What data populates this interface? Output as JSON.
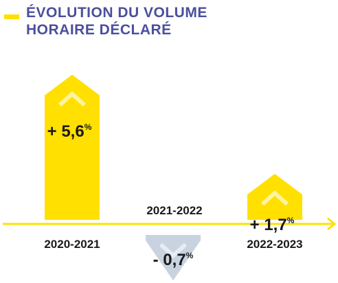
{
  "title": {
    "line1": "ÉVOLUTION DU VOLUME",
    "line2": "HORAIRE DÉCLARÉ"
  },
  "colors": {
    "positive": "#FFE000",
    "negative": "#C9D3E0",
    "axis": "#FFE000",
    "title": "#4B4F9C",
    "chevron": "#FFF4A0"
  },
  "chart_data": {
    "type": "bar",
    "categories": [
      "2020-2021",
      "2021-2022",
      "2022-2023"
    ],
    "values": [
      5.6,
      -0.7,
      1.7
    ],
    "value_labels": [
      {
        "text": "+ 5,6",
        "unit": "%"
      },
      {
        "text": "- 0,7",
        "unit": "%"
      },
      {
        "text": "+ 1,7",
        "unit": "%"
      }
    ],
    "title": "ÉVOLUTION DU VOLUME HORAIRE DÉCLARÉ",
    "xlabel": "",
    "ylabel": "",
    "grid": false,
    "legend": false
  }
}
